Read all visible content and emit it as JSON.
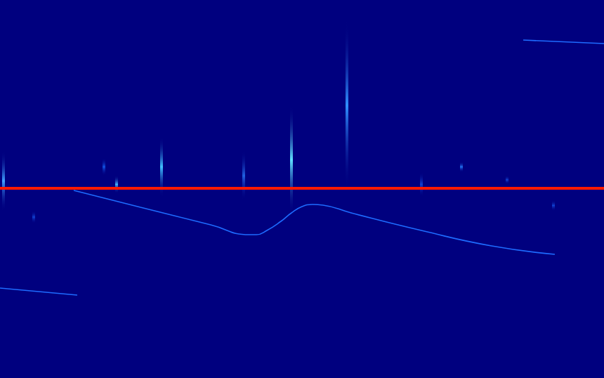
{
  "chart_data": {
    "type": "spectrogram",
    "tick_labels": false,
    "grid": false,
    "xlim": [
      0,
      860
    ],
    "ylim": [
      0,
      538
    ],
    "series": [
      {
        "type": "line",
        "color": "#ff1a00",
        "x": [
          0,
          860
        ],
        "values": [
          270,
          270
        ]
      },
      {
        "type": "line",
        "color": "#1e6cff",
        "x": [
          105,
          200,
          300,
          355,
          365,
          380,
          400,
          415,
          430,
          445,
          460,
          500,
          600,
          700,
          790
        ],
        "values": [
          267,
          243,
          218,
          204,
          204,
          210,
          223,
          235,
          244,
          247,
          246,
          235,
          210,
          188,
          176
        ]
      },
      {
        "type": "line",
        "color": "#1e6cff",
        "x": [
          0,
          110
        ],
        "values": [
          128,
          118
        ]
      },
      {
        "type": "line",
        "color": "#1e6cff",
        "x": [
          745,
          860
        ],
        "values": [
          481,
          476
        ]
      },
      {
        "type": "burst",
        "x": [
          5,
          48,
          148,
          166,
          230,
          347,
          415,
          494,
          600,
          657,
          722,
          788
        ],
        "low": [
          238,
          220,
          288,
          263,
          258,
          253,
          233,
          268,
          258,
          293,
          276,
          238
        ],
        "high": [
          323,
          238,
          313,
          288,
          343,
          323,
          388,
          508,
          293,
          308,
          288,
          253
        ],
        "colors": [
          "#3fa0ff",
          "#1040d0",
          "#1050e0",
          "#40b0ff",
          "#40c0ff",
          "#2060e0",
          "#60e0ff",
          "#3090ff",
          "#1040d0",
          "#2070f0",
          "#1040d0",
          "#1040d0"
        ]
      }
    ]
  }
}
